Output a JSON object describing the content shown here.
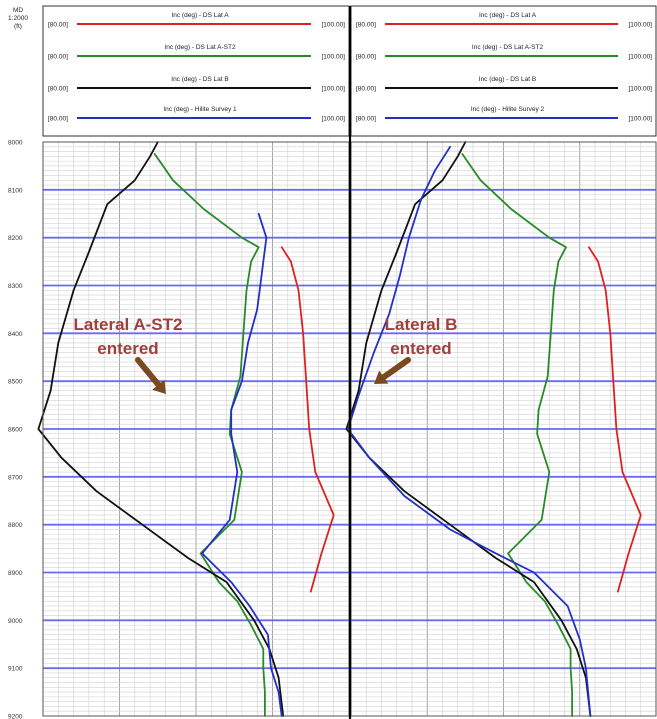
{
  "header": {
    "md_label": "MD",
    "scale_label": "1:2000",
    "unit_label": "(ft)"
  },
  "chart_data": [
    {
      "type": "line",
      "track": "left",
      "x_range": [
        80,
        100
      ],
      "x_range_labels": [
        "[80.00]",
        "[100.00]"
      ],
      "ylim": [
        8000,
        9200
      ],
      "y_ticks": [
        "8000",
        "8100",
        "8200",
        "8300",
        "8400",
        "8500",
        "8600",
        "8700",
        "8800",
        "8900",
        "9000",
        "9100",
        "9200"
      ],
      "series": [
        {
          "name": "Inc (deg) - DS Lat A",
          "color": "#e02020",
          "points": [
            [
              95.6,
              8220
            ],
            [
              96.2,
              8250
            ],
            [
              96.7,
              8310
            ],
            [
              97.0,
              8400
            ],
            [
              97.2,
              8500
            ],
            [
              97.4,
              8600
            ],
            [
              97.8,
              8690
            ],
            [
              99.0,
              8780
            ],
            [
              98.2,
              8860
            ],
            [
              97.5,
              8940
            ]
          ]
        },
        {
          "name": "Inc (deg) - DS Lat A-ST2",
          "color": "#2a8a2a",
          "points": [
            [
              87.3,
              8025
            ],
            [
              88.5,
              8080
            ],
            [
              90.5,
              8140
            ],
            [
              93.0,
              8200
            ],
            [
              94.1,
              8220
            ],
            [
              93.6,
              8250
            ],
            [
              93.3,
              8310
            ],
            [
              93.1,
              8400
            ],
            [
              92.9,
              8490
            ],
            [
              92.3,
              8560
            ],
            [
              92.2,
              8610
            ],
            [
              93.0,
              8690
            ],
            [
              92.5,
              8790
            ],
            [
              90.3,
              8860
            ],
            [
              91.5,
              8920
            ],
            [
              92.7,
              8960
            ],
            [
              93.6,
              9010
            ],
            [
              94.4,
              9060
            ],
            [
              94.4,
              9100
            ],
            [
              94.5,
              9150
            ],
            [
              94.5,
              9200
            ]
          ]
        },
        {
          "name": "Inc (deg) - DS Lat B",
          "color": "#111111",
          "points": [
            [
              87.5,
              8000
            ],
            [
              87.0,
              8030
            ],
            [
              86.0,
              8080
            ],
            [
              84.2,
              8130
            ],
            [
              83.0,
              8230
            ],
            [
              82.0,
              8310
            ],
            [
              81.0,
              8420
            ],
            [
              80.5,
              8520
            ],
            [
              79.7,
              8600
            ],
            [
              81.2,
              8660
            ],
            [
              83.5,
              8730
            ],
            [
              86.5,
              8800
            ],
            [
              89.5,
              8870
            ],
            [
              92.0,
              8920
            ],
            [
              93.8,
              9000
            ],
            [
              94.8,
              9060
            ],
            [
              95.4,
              9120
            ],
            [
              95.7,
              9200
            ]
          ]
        },
        {
          "name": "Inc (deg) - Hilite Survey 1",
          "color": "#2330c8",
          "points": [
            [
              94.1,
              8150
            ],
            [
              94.6,
              8200
            ],
            [
              94.4,
              8250
            ],
            [
              94.2,
              8300
            ],
            [
              94.0,
              8350
            ],
            [
              93.4,
              8420
            ],
            [
              93.0,
              8500
            ],
            [
              92.3,
              8560
            ],
            [
              92.3,
              8610
            ],
            [
              92.7,
              8690
            ],
            [
              92.2,
              8790
            ],
            [
              90.4,
              8860
            ],
            [
              92.3,
              8920
            ],
            [
              93.5,
              8970
            ],
            [
              94.7,
              9030
            ],
            [
              94.9,
              9100
            ],
            [
              95.4,
              9150
            ],
            [
              95.6,
              9200
            ]
          ]
        }
      ]
    },
    {
      "type": "line",
      "track": "right",
      "x_range": [
        80,
        100
      ],
      "x_range_labels": [
        "[80.00]",
        "[100.00]"
      ],
      "ylim": [
        8000,
        9200
      ],
      "y_ticks": [],
      "series": [
        {
          "name": "Inc (deg) - DS Lat A",
          "color": "#e02020",
          "points": [
            [
              95.6,
              8220
            ],
            [
              96.2,
              8250
            ],
            [
              96.7,
              8310
            ],
            [
              97.0,
              8400
            ],
            [
              97.2,
              8500
            ],
            [
              97.4,
              8600
            ],
            [
              97.8,
              8690
            ],
            [
              99.0,
              8780
            ],
            [
              98.2,
              8860
            ],
            [
              97.5,
              8940
            ]
          ]
        },
        {
          "name": "Inc (deg) - DS Lat A-ST2",
          "color": "#2a8a2a",
          "points": [
            [
              87.3,
              8025
            ],
            [
              88.5,
              8080
            ],
            [
              90.5,
              8140
            ],
            [
              93.0,
              8200
            ],
            [
              94.1,
              8220
            ],
            [
              93.6,
              8250
            ],
            [
              93.3,
              8310
            ],
            [
              93.1,
              8400
            ],
            [
              92.9,
              8490
            ],
            [
              92.3,
              8560
            ],
            [
              92.2,
              8610
            ],
            [
              93.0,
              8690
            ],
            [
              92.5,
              8790
            ],
            [
              90.3,
              8860
            ],
            [
              91.5,
              8920
            ],
            [
              92.7,
              8960
            ],
            [
              93.6,
              9010
            ],
            [
              94.4,
              9060
            ],
            [
              94.4,
              9100
            ],
            [
              94.5,
              9150
            ],
            [
              94.5,
              9200
            ]
          ]
        },
        {
          "name": "Inc (deg) - DS Lat B",
          "color": "#111111",
          "points": [
            [
              87.5,
              8000
            ],
            [
              87.0,
              8030
            ],
            [
              86.0,
              8080
            ],
            [
              84.2,
              8130
            ],
            [
              83.0,
              8230
            ],
            [
              82.0,
              8310
            ],
            [
              81.0,
              8420
            ],
            [
              80.5,
              8520
            ],
            [
              79.7,
              8600
            ],
            [
              81.2,
              8660
            ],
            [
              83.5,
              8730
            ],
            [
              86.5,
              8800
            ],
            [
              89.5,
              8870
            ],
            [
              92.0,
              8920
            ],
            [
              93.8,
              9000
            ],
            [
              94.8,
              9060
            ],
            [
              95.4,
              9120
            ],
            [
              95.7,
              9200
            ]
          ]
        },
        {
          "name": "Inc (deg) - Hilite Survey 2",
          "color": "#2330c8",
          "points": [
            [
              86.5,
              8010
            ],
            [
              85.5,
              8060
            ],
            [
              84.6,
              8120
            ],
            [
              83.8,
              8200
            ],
            [
              83.2,
              8280
            ],
            [
              82.5,
              8360
            ],
            [
              81.5,
              8440
            ],
            [
              80.5,
              8530
            ],
            [
              79.8,
              8600
            ],
            [
              81.2,
              8660
            ],
            [
              83.5,
              8740
            ],
            [
              86.5,
              8810
            ],
            [
              89.5,
              8860
            ],
            [
              92.0,
              8900
            ],
            [
              94.2,
              8970
            ],
            [
              95.0,
              9040
            ],
            [
              95.4,
              9100
            ],
            [
              95.7,
              9200
            ]
          ]
        }
      ]
    }
  ],
  "annotations": [
    {
      "track": "left",
      "lines": [
        "Lateral A-ST2",
        "entered"
      ]
    },
    {
      "track": "right",
      "lines": [
        "Lateral B",
        "entered"
      ]
    }
  ]
}
